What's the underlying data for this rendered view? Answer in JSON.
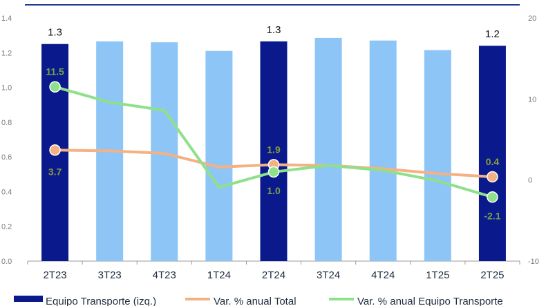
{
  "chart_data": {
    "type": "bar",
    "categories": [
      "2T23",
      "3T23",
      "4T23",
      "1T24",
      "2T24",
      "3T24",
      "4T24",
      "1T25",
      "2T25"
    ],
    "y_left": {
      "ticks": [
        "0.0",
        "0.2",
        "0.4",
        "0.6",
        "0.8",
        "1.0",
        "1.2",
        "1.4"
      ],
      "ylim": [
        0,
        1.4
      ]
    },
    "y_right": {
      "ticks": [
        "-10",
        "0",
        "10",
        "20"
      ],
      "ylim": [
        -10,
        20
      ]
    },
    "series": [
      {
        "name": "Equipo Transporte (izq.)",
        "type": "bar",
        "axis": "left",
        "values": [
          1.25,
          1.265,
          1.26,
          1.21,
          1.265,
          1.285,
          1.27,
          1.215,
          1.24
        ],
        "highlight": [
          true,
          false,
          false,
          false,
          true,
          false,
          false,
          false,
          true
        ],
        "colors": {
          "highlight": "#0a1a8c",
          "normal": "#8ec5f7"
        },
        "data_labels": [
          {
            "index": 0,
            "text": "1.3"
          },
          {
            "index": 4,
            "text": "1.3"
          },
          {
            "index": 8,
            "text": "1.2"
          }
        ]
      },
      {
        "name": "Var. % anual Total",
        "type": "line",
        "axis": "right",
        "color": "#f4b183",
        "marker_color": "#f4b183",
        "values": [
          3.7,
          3.6,
          3.3,
          1.6,
          1.9,
          1.8,
          1.4,
          0.8,
          0.4
        ],
        "data_labels": [
          {
            "index": 0,
            "text": "3.7",
            "color": "#8a9c3a"
          },
          {
            "index": 4,
            "text": "1.9",
            "color": "#8a9c3a"
          },
          {
            "index": 8,
            "text": "0.4",
            "color": "#8a9c3a"
          }
        ]
      },
      {
        "name": "Var. % anual Equipo Transporte",
        "type": "line",
        "axis": "right",
        "color": "#8fe08a",
        "marker_color": "#8fe08a",
        "values": [
          11.5,
          9.6,
          8.6,
          -0.9,
          1.0,
          1.8,
          1.2,
          -0.1,
          -2.1
        ],
        "data_labels": [
          {
            "index": 0,
            "text": "11.5",
            "color": "#7aa24e"
          },
          {
            "index": 4,
            "text": "1.0",
            "color": "#7aa24e"
          },
          {
            "index": 8,
            "text": "-2.1",
            "color": "#7aa24e"
          }
        ]
      }
    ],
    "legend_position": "bottom",
    "grid": false,
    "top_rule_color": "#1f3a93"
  }
}
